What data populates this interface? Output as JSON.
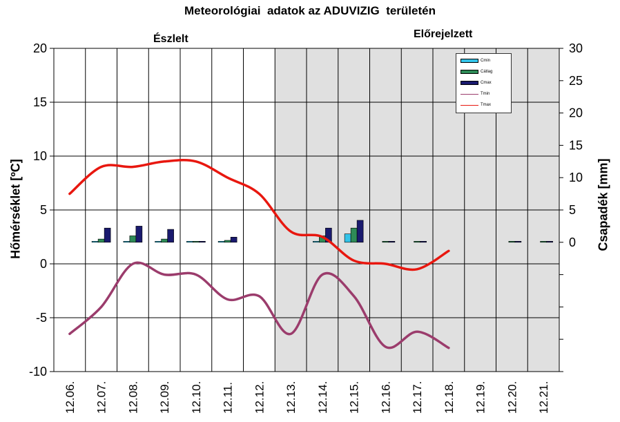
{
  "chart_data": {
    "type": "bar+line",
    "title": "Meteorológiai  adatok az ADUVIZIG  területén",
    "regions": {
      "observed": "Észlelt",
      "forecast": "Előrejelzett"
    },
    "categories": [
      "12.06.",
      "12.07.",
      "12.08.",
      "12.09.",
      "12.10.",
      "12.11.",
      "12.12.",
      "12.13.",
      "12.14.",
      "12.15.",
      "12.16.",
      "12.17.",
      "12.18.",
      "12.19.",
      "12.20.",
      "12.21."
    ],
    "forecast_start": "12.13.",
    "y_left": {
      "label": "Hőmérséklet [ºC]",
      "ylim": [
        -10,
        20
      ],
      "ticks": [
        "-10",
        "-5",
        "0",
        "5",
        "10",
        "15",
        "20"
      ]
    },
    "y_right": {
      "label": "Csapadék [mm]",
      "ylim": [
        -20,
        30
      ],
      "ticks": [
        "0",
        "5",
        "10",
        "15",
        "20",
        "25",
        "30"
      ]
    },
    "legend": [
      "Cmin",
      "Cátlag",
      "Cmax",
      "Tmin",
      "Tmax"
    ],
    "bar_series": [
      {
        "name": "Cmin",
        "color": "#33c3e8",
        "values": [
          null,
          0,
          0,
          0,
          0,
          0,
          null,
          null,
          0,
          1.3,
          null,
          null,
          null,
          null,
          null,
          null
        ]
      },
      {
        "name": "Cátlag",
        "color": "#2e8b57",
        "values": [
          null,
          0.5,
          1.0,
          0.5,
          0,
          0.3,
          null,
          null,
          1.0,
          2.2,
          0,
          0,
          null,
          null,
          0,
          0
        ]
      },
      {
        "name": "Cmax",
        "color": "#1a1a6e",
        "values": [
          null,
          2.2,
          2.5,
          2.0,
          0.1,
          0.8,
          null,
          null,
          2.2,
          3.4,
          0.1,
          0,
          null,
          null,
          0,
          0.1
        ]
      }
    ],
    "line_series": [
      {
        "name": "Tmin",
        "color": "#9b3c6c",
        "values": [
          -6.5,
          -4,
          0,
          -1,
          -1,
          -3.3,
          -3,
          -6.5,
          -1,
          -3,
          -7.7,
          -6.3,
          -7.8,
          null,
          null,
          null
        ]
      },
      {
        "name": "Tmax",
        "color": "#e8170f",
        "values": [
          6.5,
          9,
          9,
          9.5,
          9.5,
          8,
          6.5,
          3,
          2.5,
          0.3,
          0,
          -0.5,
          1.2,
          null,
          null,
          null
        ]
      }
    ],
    "grid": true
  }
}
